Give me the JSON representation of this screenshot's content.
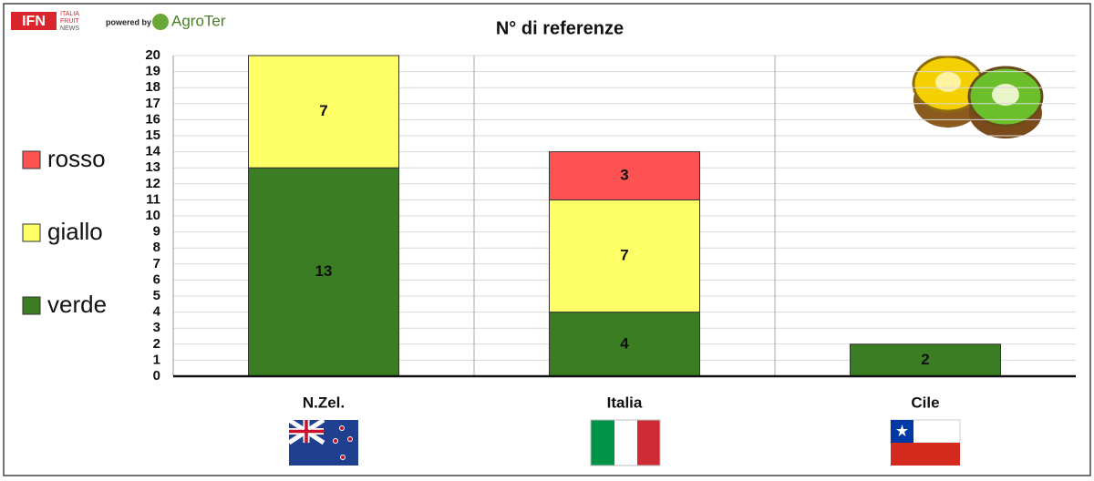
{
  "branding": {
    "ifn": "IFN",
    "ifn_sub": [
      "ITALIA",
      "FRUIT",
      "NEWS"
    ],
    "powered_by": "powered by",
    "agroter": "AgroTer"
  },
  "chart_data": {
    "type": "stacked_bar",
    "title": "N° di referenze",
    "categories": [
      "N.Zel.",
      "Italia",
      "Cile"
    ],
    "series": [
      {
        "name": "verde",
        "color": "#3b7d23",
        "values": [
          13,
          4,
          2
        ]
      },
      {
        "name": "giallo",
        "color": "#ffff66",
        "values": [
          7,
          7,
          null
        ]
      },
      {
        "name": "rosso",
        "color": "#ff5353",
        "values": [
          null,
          3,
          null
        ]
      }
    ],
    "ylim": [
      0,
      20
    ],
    "yticks": [
      0,
      1,
      2,
      3,
      4,
      5,
      6,
      7,
      8,
      9,
      10,
      11,
      12,
      13,
      14,
      15,
      16,
      17,
      18,
      19,
      20
    ],
    "grid": true,
    "legend": "left"
  }
}
